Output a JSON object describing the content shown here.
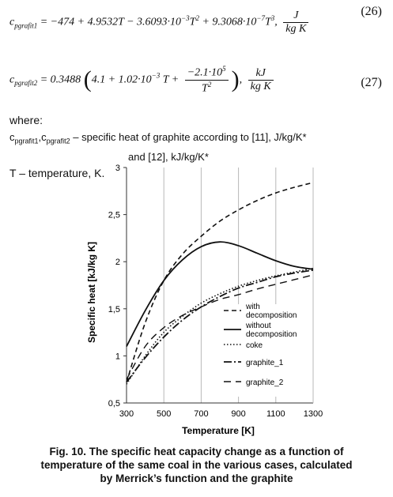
{
  "equations": [
    {
      "lhs": "c",
      "lhs_sub": "pgrafit1",
      "rhs": "= −474 + 4.9532T − 3.6093·10",
      "exp1": "−3",
      "mid1": "T",
      "exp2": "2",
      "mid2": " + 9.3068·10",
      "exp3": "−7",
      "mid3": "T",
      "exp4": "3",
      "tail": ",",
      "unit_num": "J",
      "unit_den": "kg K",
      "number": "(26)"
    },
    {
      "lhs": "c",
      "lhs_sub": "pgrafit2",
      "rhs_a": "= 0.3488",
      "rhs_b": "4.1 + 1.02·10",
      "exp1": "−3",
      "rhs_c": "T +",
      "frac_num": "−2.1·10",
      "frac_num_exp": "5",
      "frac_den": "T",
      "frac_den_exp": "2",
      "tail": ",",
      "unit_num": "kJ",
      "unit_den": "kg K",
      "number": "(27)"
    }
  ],
  "where_label": "where:",
  "definitions": {
    "sym1": "c",
    "sub1": "pgrafit1",
    "comma": ",",
    "sym2": "c",
    "sub2": "pgrafit2",
    "text1": " – specific heat of graphite according to [11], J/kg/K*",
    "text2": "and [12], kJ/kg/K*",
    "text3": "T – temperature, K."
  },
  "chart_data": {
    "type": "line",
    "xlabel": "Temperature [K]",
    "ylabel": "Specific heat [kJ/kg K]",
    "xlim": [
      300,
      1300
    ],
    "ylim": [
      0.5,
      3
    ],
    "x_ticks": [
      "300",
      "500",
      "700",
      "900",
      "1100",
      "1300"
    ],
    "y_ticks": [
      "0,5",
      "1",
      "1,5",
      "2",
      "2,5",
      "3"
    ],
    "grid": "vertical",
    "legend_position": "bottom-right",
    "series": [
      {
        "name": "with decomposition",
        "style": "dash",
        "x": [
          300,
          400,
          500,
          600,
          700,
          800,
          900,
          1000,
          1100,
          1200,
          1300
        ],
        "y": [
          0.72,
          1.35,
          1.8,
          2.08,
          2.27,
          2.43,
          2.55,
          2.65,
          2.73,
          2.79,
          2.84
        ]
      },
      {
        "name": "without decomposition",
        "style": "solid",
        "x": [
          300,
          400,
          500,
          600,
          700,
          800,
          900,
          1000,
          1100,
          1200,
          1300
        ],
        "y": [
          1.1,
          1.48,
          1.8,
          2.02,
          2.16,
          2.21,
          2.17,
          2.09,
          2.01,
          1.95,
          1.92
        ]
      },
      {
        "name": "coke",
        "style": "dot",
        "x": [
          300,
          400,
          500,
          600,
          700,
          800,
          900,
          1000,
          1100,
          1200,
          1300
        ],
        "y": [
          0.7,
          1.0,
          1.25,
          1.42,
          1.56,
          1.66,
          1.74,
          1.8,
          1.85,
          1.89,
          1.93
        ]
      },
      {
        "name": "graphite_1",
        "style": "dashdot",
        "x": [
          300,
          400,
          500,
          600,
          700,
          800,
          900,
          1000,
          1100,
          1200,
          1300
        ],
        "y": [
          0.72,
          0.98,
          1.2,
          1.38,
          1.52,
          1.63,
          1.72,
          1.78,
          1.84,
          1.88,
          1.91
        ]
      },
      {
        "name": "graphite_2",
        "style": "longdash",
        "x": [
          300,
          400,
          500,
          600,
          700,
          800,
          900,
          1000,
          1100,
          1200,
          1300
        ],
        "y": [
          0.75,
          1.1,
          1.3,
          1.43,
          1.52,
          1.6,
          1.65,
          1.71,
          1.76,
          1.81,
          1.86
        ]
      }
    ]
  },
  "caption": [
    "Fig. 10. The specific heat capacity change as a function of",
    "temperature of the same coal in the various cases, calculated",
    "by Merrick’s function and the graphite"
  ]
}
